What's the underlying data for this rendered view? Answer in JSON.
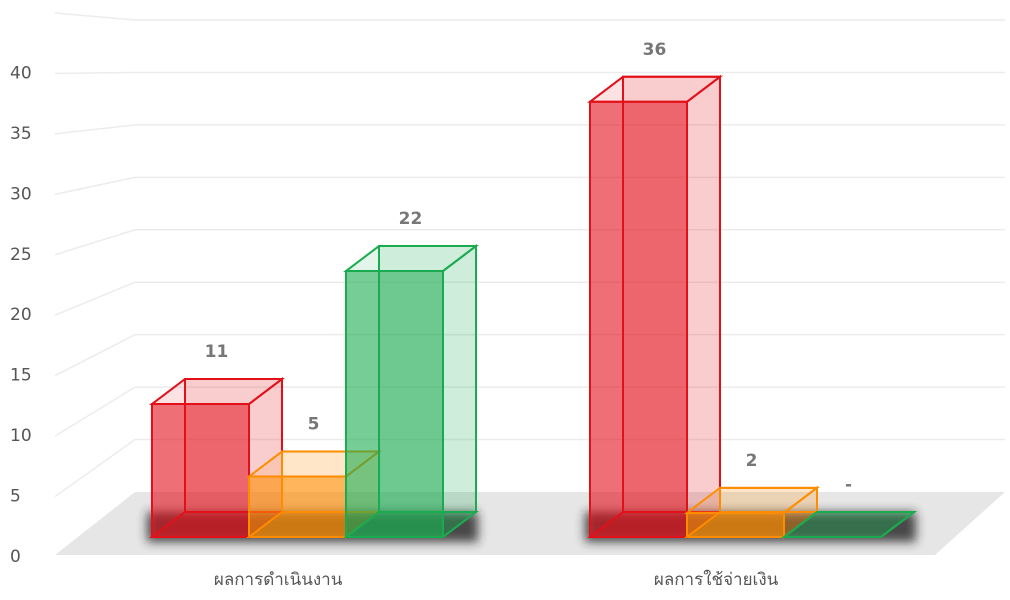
{
  "chart_data": {
    "type": "bar3d",
    "categories": [
      "ผลการดำเนินงาน",
      "ผลการใช้จ่ายเงิน"
    ],
    "series": [
      {
        "color": "#e3101a",
        "values": [
          11,
          36
        ]
      },
      {
        "color": "#ff8c00",
        "values": [
          5,
          2
        ]
      },
      {
        "color": "#1aab50",
        "values": [
          22,
          0
        ],
        "value_labels": [
          "22",
          "-"
        ]
      }
    ],
    "ylim": [
      0,
      45
    ],
    "yticks": [
      0,
      5,
      10,
      15,
      20,
      25,
      30,
      35,
      40
    ],
    "grid": true
  }
}
